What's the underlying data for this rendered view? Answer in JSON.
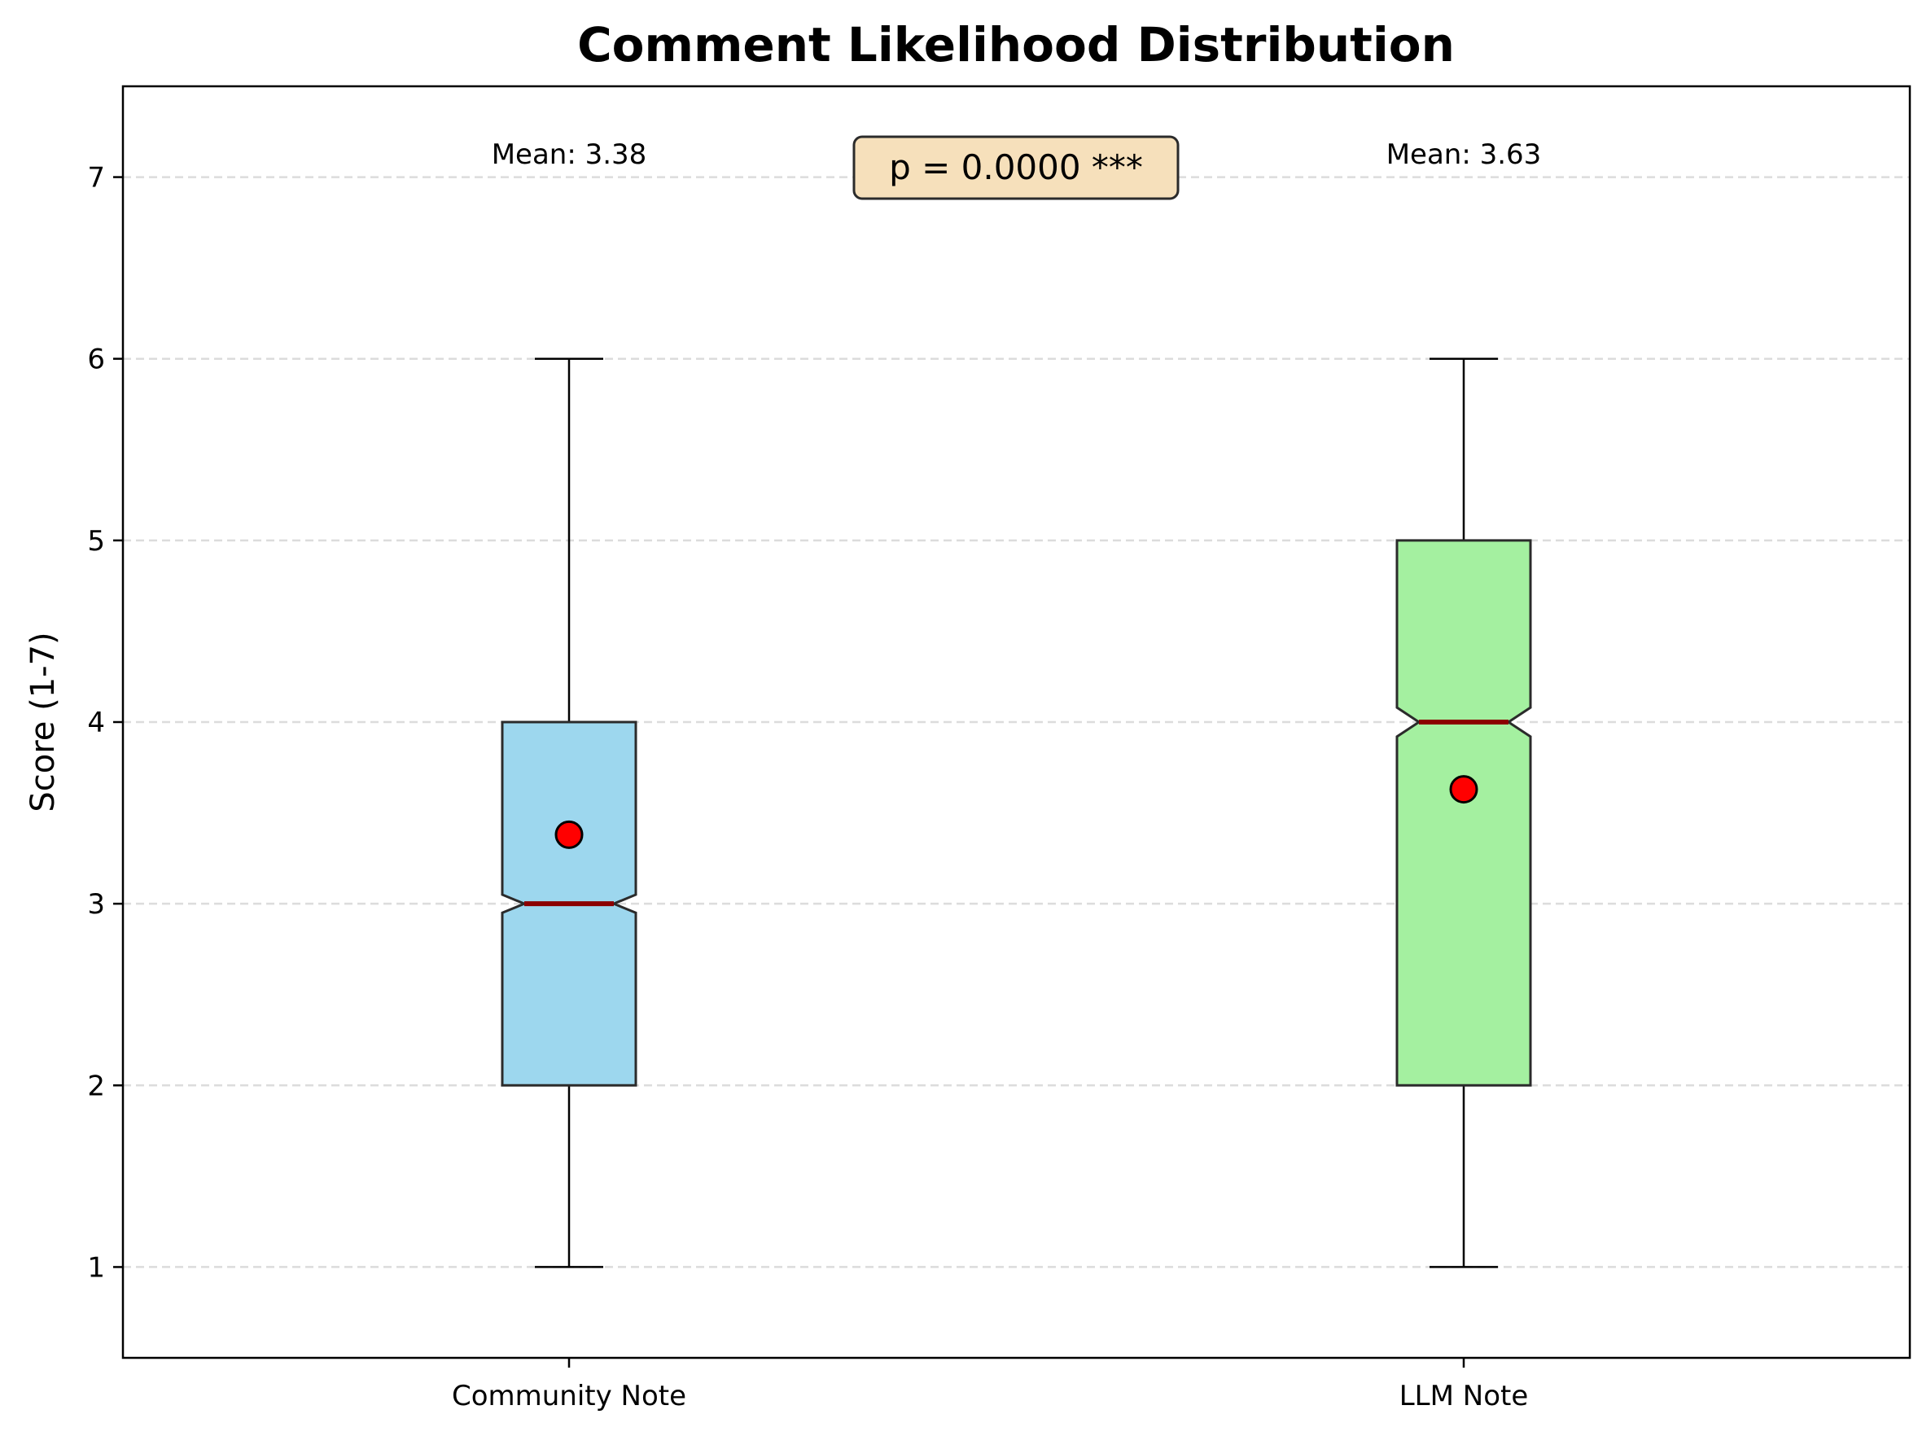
{
  "chart_data": {
    "type": "box",
    "title": "Comment Likelihood Distribution",
    "xlabel": "",
    "ylabel": "Score (1-7)",
    "ylim": [
      0.5,
      7.5
    ],
    "yticks": [
      1,
      2,
      3,
      4,
      5,
      6,
      7
    ],
    "grid": "horizontal dashed",
    "categories": [
      "Community Note",
      "LLM Note"
    ],
    "boxes": [
      {
        "category": "Community Note",
        "whisker_low": 1,
        "q1": 2,
        "median": 3,
        "q3": 4,
        "whisker_high": 6,
        "mean": 3.38,
        "mean_label": "Mean: 3.38",
        "notch_low": 2.95,
        "notch_high": 3.05,
        "color": "#9dd7ee"
      },
      {
        "category": "LLM Note",
        "whisker_low": 1,
        "q1": 2,
        "median": 4,
        "q3": 5,
        "whisker_high": 6,
        "mean": 3.63,
        "mean_label": "Mean: 3.63",
        "notch_low": 3.92,
        "notch_high": 4.08,
        "color": "#a4f0a0"
      }
    ],
    "annotation": "p = 0.0000 ***",
    "annotation_box_color": "#f6e0bb",
    "median_color": "#8b0000",
    "mean_marker_color": "#ff0000"
  }
}
